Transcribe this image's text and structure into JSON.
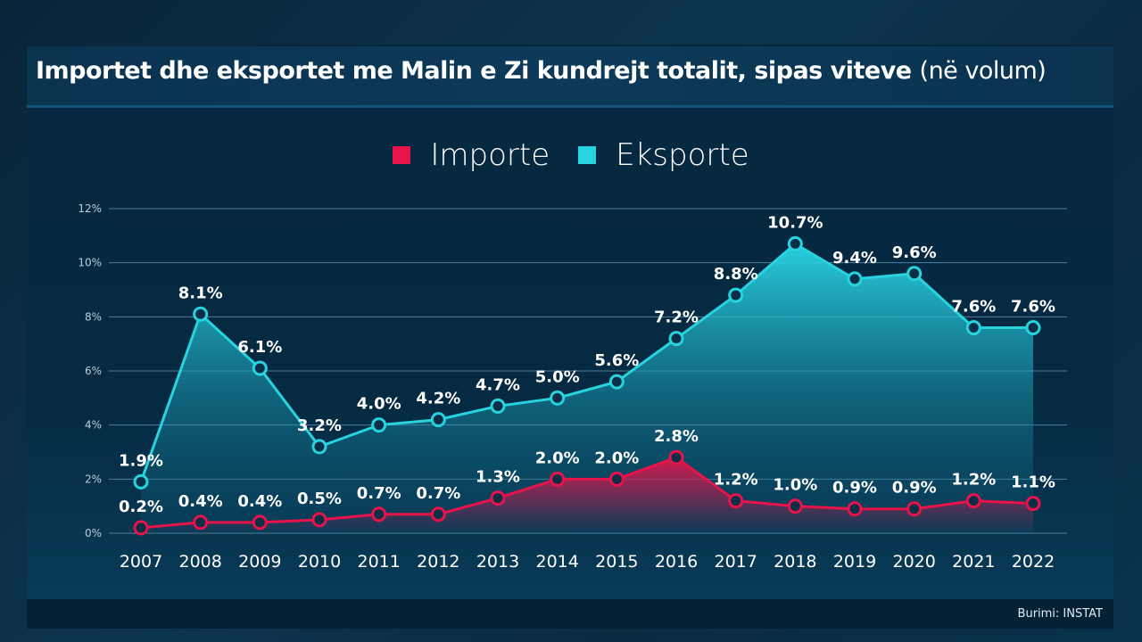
{
  "chart_data": {
    "type": "area",
    "title": "Importet dhe eksportet me Malin e Zi kundrejt totalit, sipas viteve",
    "subtitle": "(në volum)",
    "categories": [
      "2007",
      "2008",
      "2009",
      "2010",
      "2011",
      "2012",
      "2013",
      "2014",
      "2015",
      "2016",
      "2017",
      "2018",
      "2019",
      "2020",
      "2021",
      "2022"
    ],
    "ylim": [
      0,
      12
    ],
    "yticks": [
      "0%",
      "2%",
      "4%",
      "6%",
      "8%",
      "10%",
      "12%"
    ],
    "grid": true,
    "legend_position": "top-center",
    "series": [
      {
        "name": "Importe",
        "color": "#e8134a",
        "values": [
          0.2,
          0.4,
          0.4,
          0.5,
          0.7,
          0.7,
          1.3,
          2.0,
          2.0,
          2.8,
          1.2,
          1.0,
          0.9,
          0.9,
          1.2,
          1.1
        ],
        "labels": [
          "0.2%",
          "0.4%",
          "0.4%",
          "0.5%",
          "0.7%",
          "0.7%",
          "1.3%",
          "2.0%",
          "2.0%",
          "2.8%",
          "1.2%",
          "1.0%",
          "0.9%",
          "0.9%",
          "1.2%",
          "1.1%"
        ]
      },
      {
        "name": "Eksporte",
        "color": "#28d3e0",
        "values": [
          1.9,
          8.1,
          6.1,
          3.2,
          4.0,
          4.2,
          4.7,
          5.0,
          5.6,
          7.2,
          8.8,
          10.7,
          9.4,
          9.6,
          7.6,
          7.6
        ],
        "labels": [
          "1.9%",
          "8.1%",
          "6.1%",
          "3.2%",
          "4.0%",
          "4.2%",
          "4.7%",
          "5.0%",
          "5.6%",
          "7.2%",
          "8.8%",
          "10.7%",
          "9.4%",
          "9.6%",
          "7.6%",
          "7.6%"
        ]
      }
    ]
  },
  "source": "Burimi: INSTAT"
}
